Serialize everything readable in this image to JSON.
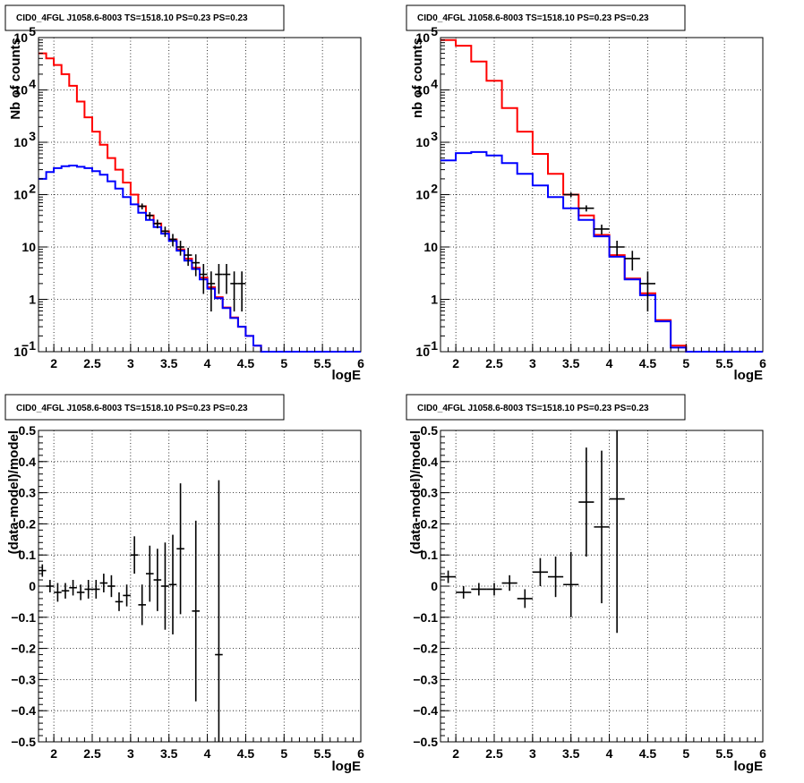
{
  "page": {
    "background": "#ffffff",
    "colors": {
      "total": "#ff0000",
      "source": "#0000ff",
      "data": "#000000"
    }
  },
  "chart_data": [
    {
      "type": "line",
      "title": "CID0_4FGL J1058.6-8003 TS=1518.10 PS=0.23 PS=0.23",
      "xlabel": "logE",
      "ylabel": "Nb of counts",
      "xlim": [
        1.8,
        6
      ],
      "ylim": [
        0.1,
        100000
      ],
      "yscale": "log",
      "grid": true,
      "xticks": [
        "2",
        "2.5",
        "3",
        "3.5",
        "4",
        "4.5",
        "5",
        "5.5",
        "6"
      ],
      "yticks": [
        "10^-1",
        "1",
        "10",
        "10^2",
        "10^3",
        "10^4",
        "10^5"
      ],
      "series": [
        {
          "role": "total",
          "color": "#ff0000",
          "style": "step",
          "binwidth": 0.1,
          "x": [
            1.8,
            1.9,
            2.0,
            2.1,
            2.2,
            2.3,
            2.4,
            2.5,
            2.6,
            2.7,
            2.8,
            2.9,
            3.0,
            3.1,
            3.2,
            3.3,
            3.4,
            3.5,
            3.6,
            3.7,
            3.8,
            3.9,
            4.0,
            4.1,
            4.2,
            4.3,
            4.4,
            4.5,
            4.6,
            4.7,
            4.8,
            4.9,
            5.0,
            5.1,
            5.2,
            5.3,
            5.4,
            5.5,
            5.6,
            5.7,
            5.8,
            5.9
          ],
          "y": [
            50000,
            40000,
            30000,
            20000,
            12000,
            6000,
            3000,
            1600,
            900,
            500,
            300,
            170,
            100,
            60,
            40,
            28,
            20,
            14,
            9,
            6,
            4,
            2.6,
            1.7,
            1.1,
            0.7,
            0.45,
            0.3,
            0.2,
            0.13,
            0.1,
            0.1,
            0.1,
            0.1,
            0.1,
            0.1,
            0.1,
            0.1,
            0.1,
            0.1,
            0.1,
            0.1,
            0.1
          ]
        },
        {
          "role": "source",
          "color": "#0000ff",
          "style": "step",
          "binwidth": 0.1,
          "x": [
            1.8,
            1.9,
            2.0,
            2.1,
            2.2,
            2.3,
            2.4,
            2.5,
            2.6,
            2.7,
            2.8,
            2.9,
            3.0,
            3.1,
            3.2,
            3.3,
            3.4,
            3.5,
            3.6,
            3.7,
            3.8,
            3.9,
            4.0,
            4.1,
            4.2,
            4.3,
            4.4,
            4.5,
            4.6,
            4.7,
            4.8,
            4.9,
            5.0,
            5.1,
            5.2,
            5.3,
            5.4,
            5.5,
            5.6,
            5.7,
            5.8,
            5.9
          ],
          "y": [
            200,
            270,
            320,
            350,
            360,
            340,
            320,
            280,
            240,
            180,
            130,
            90,
            65,
            45,
            33,
            24,
            18,
            13,
            8.5,
            5.5,
            3.8,
            2.4,
            1.6,
            1.05,
            0.68,
            0.44,
            0.3,
            0.2,
            0.13,
            0.1,
            0.1,
            0.1,
            0.1,
            0.1,
            0.1,
            0.1,
            0.1,
            0.1,
            0.1,
            0.1,
            0.1,
            0.1
          ]
        },
        {
          "role": "data",
          "color": "#000000",
          "style": "errorbar",
          "binwidth": 0.1,
          "x": [
            3.15,
            3.25,
            3.35,
            3.45,
            3.55,
            3.65,
            3.75,
            3.85,
            3.95,
            4.05,
            4.15,
            4.25,
            4.35,
            4.45
          ],
          "y": [
            60,
            40,
            28,
            20,
            14,
            10,
            7,
            5,
            3,
            2,
            3,
            3,
            2,
            2
          ]
        }
      ]
    },
    {
      "type": "line",
      "title": "CID0_4FGL J1058.6-8003 TS=1518.10 PS=0.23 PS=0.23",
      "xlabel": "logE",
      "ylabel": "nb of counts",
      "xlim": [
        1.8,
        6
      ],
      "ylim": [
        0.1,
        100000
      ],
      "yscale": "log",
      "grid": true,
      "xticks": [
        "2",
        "2.5",
        "3",
        "3.5",
        "4",
        "4.5",
        "5",
        "5.5",
        "6"
      ],
      "yticks": [
        "10^-1",
        "1",
        "10",
        "10^2",
        "10^3",
        "10^4",
        "10^5"
      ],
      "series": [
        {
          "role": "total",
          "color": "#ff0000",
          "style": "step",
          "binwidth": 0.2,
          "x": [
            1.8,
            2.0,
            2.2,
            2.4,
            2.6,
            2.8,
            3.0,
            3.2,
            3.4,
            3.6,
            3.8,
            4.0,
            4.2,
            4.4,
            4.6,
            4.8,
            5.0,
            5.2,
            5.4,
            5.6,
            5.8
          ],
          "y": [
            90000,
            70000,
            35000,
            15000,
            4500,
            1600,
            600,
            250,
            100,
            40,
            17,
            7,
            2.5,
            1.3,
            0.4,
            0.13,
            0.1,
            0.1,
            0.1,
            0.1,
            0.1
          ]
        },
        {
          "role": "source",
          "color": "#0000ff",
          "style": "step",
          "binwidth": 0.2,
          "x": [
            1.8,
            2.0,
            2.2,
            2.4,
            2.6,
            2.8,
            3.0,
            3.2,
            3.4,
            3.6,
            3.8,
            4.0,
            4.2,
            4.4,
            4.6,
            4.8,
            5.0,
            5.2,
            5.4,
            5.6,
            5.8
          ],
          "y": [
            450,
            620,
            650,
            560,
            400,
            250,
            150,
            90,
            55,
            33,
            16,
            6.5,
            2.4,
            1.2,
            0.38,
            0.12,
            0.1,
            0.1,
            0.1,
            0.1,
            0.1
          ]
        },
        {
          "role": "data",
          "color": "#000000",
          "style": "errorbar",
          "binwidth": 0.2,
          "x": [
            3.5,
            3.7,
            3.9,
            4.1,
            4.3,
            4.5
          ],
          "y": [
            100,
            55,
            22,
            10,
            6,
            2
          ]
        }
      ]
    },
    {
      "type": "scatter",
      "title": "CID0_4FGL J1058.6-8003 TS=1518.10 PS=0.23 PS=0.23",
      "xlabel": "logE",
      "ylabel": "(data-model)/model",
      "xlim": [
        1.8,
        6
      ],
      "ylim": [
        -0.5,
        0.5
      ],
      "grid": true,
      "xticks": [
        "2",
        "2.5",
        "3",
        "3.5",
        "4",
        "4.5",
        "5",
        "5.5",
        "6"
      ],
      "yticks": [
        "-0.5",
        "-0.4",
        "-0.3",
        "-0.2",
        "-0.1",
        "0",
        "0.1",
        "0.2",
        "0.3",
        "0.4",
        "0.5"
      ],
      "points": [
        {
          "x": 1.85,
          "y": 0.05,
          "err": 0.02
        },
        {
          "x": 1.95,
          "y": 0.0,
          "err": 0.02
        },
        {
          "x": 2.05,
          "y": -0.02,
          "err": 0.03
        },
        {
          "x": 2.15,
          "y": -0.015,
          "err": 0.025
        },
        {
          "x": 2.25,
          "y": -0.005,
          "err": 0.025
        },
        {
          "x": 2.35,
          "y": -0.02,
          "err": 0.025
        },
        {
          "x": 2.45,
          "y": -0.01,
          "err": 0.03
        },
        {
          "x": 2.55,
          "y": -0.01,
          "err": 0.03
        },
        {
          "x": 2.65,
          "y": 0.01,
          "err": 0.03
        },
        {
          "x": 2.75,
          "y": 0.0,
          "err": 0.035
        },
        {
          "x": 2.85,
          "y": -0.05,
          "err": 0.03
        },
        {
          "x": 2.95,
          "y": -0.03,
          "err": 0.035
        },
        {
          "x": 3.05,
          "y": 0.1,
          "err": 0.06
        },
        {
          "x": 3.15,
          "y": -0.06,
          "err": 0.065
        },
        {
          "x": 3.25,
          "y": 0.04,
          "err": 0.09
        },
        {
          "x": 3.35,
          "y": 0.02,
          "err": 0.1
        },
        {
          "x": 3.45,
          "y": 0.0,
          "err": 0.14
        },
        {
          "x": 3.55,
          "y": 0.005,
          "err": 0.16
        },
        {
          "x": 3.65,
          "y": 0.12,
          "err": 0.21
        },
        {
          "x": 3.85,
          "y": -0.08,
          "err": 0.29
        },
        {
          "x": 4.15,
          "y": -0.22,
          "err": 0.56
        }
      ]
    },
    {
      "type": "scatter",
      "title": "CID0_4FGL J1058.6-8003 TS=1518.10 PS=0.23 PS=0.23",
      "xlabel": "logE",
      "ylabel": "(data-model)/model",
      "xlim": [
        1.8,
        6
      ],
      "ylim": [
        -0.5,
        0.5
      ],
      "grid": true,
      "xticks": [
        "2",
        "2.5",
        "3",
        "3.5",
        "4",
        "4.5",
        "5",
        "5.5",
        "6"
      ],
      "yticks": [
        "-0.5",
        "-0.4",
        "-0.3",
        "-0.2",
        "-0.1",
        "0",
        "0.1",
        "0.2",
        "0.3",
        "0.4",
        "0.5"
      ],
      "points": [
        {
          "x": 1.9,
          "y": 0.03,
          "err": 0.02
        },
        {
          "x": 2.1,
          "y": -0.02,
          "err": 0.02
        },
        {
          "x": 2.3,
          "y": -0.01,
          "err": 0.02
        },
        {
          "x": 2.5,
          "y": -0.01,
          "err": 0.02
        },
        {
          "x": 2.7,
          "y": 0.01,
          "err": 0.025
        },
        {
          "x": 2.9,
          "y": -0.04,
          "err": 0.03
        },
        {
          "x": 3.1,
          "y": 0.045,
          "err": 0.045
        },
        {
          "x": 3.3,
          "y": 0.03,
          "err": 0.065
        },
        {
          "x": 3.5,
          "y": 0.005,
          "err": 0.105
        },
        {
          "x": 3.7,
          "y": 0.27,
          "err": 0.175
        },
        {
          "x": 3.9,
          "y": 0.19,
          "err": 0.245
        },
        {
          "x": 4.1,
          "y": 0.28,
          "err": 0.43
        }
      ]
    }
  ]
}
